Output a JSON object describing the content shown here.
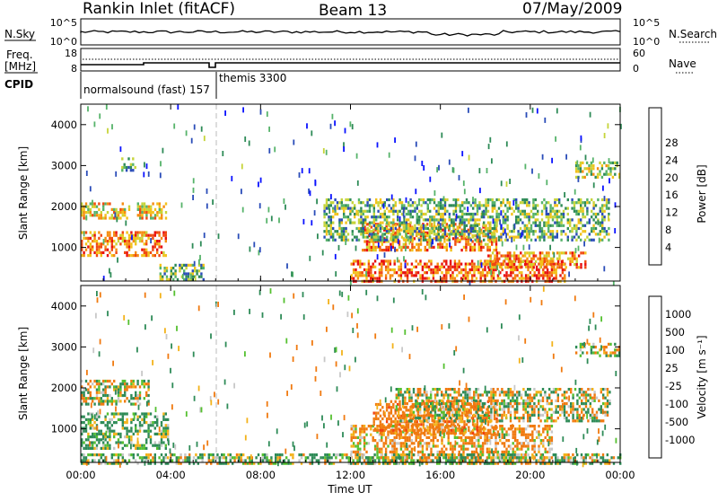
{
  "header": {
    "station": "Rankin Inlet (fitACF)",
    "beam": "Beam 13",
    "date": "07/May/2009"
  },
  "strip": {
    "nsky_label": "N.Sky",
    "nsky_ticks": [
      "10^5",
      "10^0"
    ],
    "nsearch_label": "N.Search",
    "nsearch_ticks": [
      "10^5",
      "10^0"
    ],
    "freq_label_1": "Freq.",
    "freq_label_2": "[MHz]",
    "freq_ticks": [
      "18",
      "8"
    ],
    "nave_label": "Nave",
    "nave_ticks": [
      "60",
      "0"
    ],
    "cpid_label": "CPID",
    "cpid_entries": [
      "normalsound (fast) 157",
      "themis 3300"
    ]
  },
  "axes": {
    "xlabel": "Time UT",
    "xticks": [
      "00:00",
      "04:00",
      "08:00",
      "12:00",
      "16:00",
      "20:00",
      "00:00"
    ],
    "ylabel": "Slant Range [km]",
    "yticks": [
      "1000",
      "2000",
      "3000",
      "4000"
    ]
  },
  "power_scale": {
    "label": "Power [dB]",
    "ticks": [
      "4",
      "8",
      "12",
      "16",
      "20",
      "24",
      "28"
    ],
    "colors": [
      "#0a12ff",
      "#2a4cb8",
      "#2e8b57",
      "#56b36a",
      "#c6d43a",
      "#f2c21a",
      "#f58c10",
      "#f04a10",
      "#e81010"
    ]
  },
  "velocity_scale": {
    "label": "Velocity [m s⁻¹]",
    "ticks": [
      "1000",
      "500",
      "100",
      "25",
      "-25",
      "-100",
      "-500",
      "-1000"
    ],
    "colors": [
      "#1f3fd8",
      "#2e6fb0",
      "#2e8b57",
      "#55c030",
      "#c8c8c8",
      "#f3b21a",
      "#f07a10",
      "#f04010",
      "#e81010"
    ]
  },
  "chart_data": [
    {
      "type": "heatmap",
      "title": "Power",
      "x": {
        "range": [
          "00:00",
          "24:00"
        ],
        "unit": "Time UT"
      },
      "y": {
        "range": [
          180,
          4500
        ],
        "unit": "km"
      },
      "value_label": "Power [dB]",
      "value_range": [
        0,
        30
      ],
      "regions": [
        {
          "t": [
            0.0,
            3.8
          ],
          "r": [
            800,
            1400
          ],
          "value": 22
        },
        {
          "t": [
            0.0,
            2.2
          ],
          "r": [
            1700,
            2100
          ],
          "value": 18
        },
        {
          "t": [
            2.5,
            3.8
          ],
          "r": [
            1700,
            2100
          ],
          "value": 18
        },
        {
          "t": [
            1.8,
            2.4
          ],
          "r": [
            2850,
            3200
          ],
          "value": 10
        },
        {
          "t": [
            3.5,
            5.5
          ],
          "r": [
            180,
            600
          ],
          "value": 12
        },
        {
          "t": [
            12.0,
            21.5
          ],
          "r": [
            180,
            700
          ],
          "value": 24
        },
        {
          "t": [
            12.5,
            18.5
          ],
          "r": [
            900,
            1600
          ],
          "value": 22
        },
        {
          "t": [
            18.0,
            22.5
          ],
          "r": [
            500,
            900
          ],
          "value": 22
        },
        {
          "t": [
            10.8,
            23.5
          ],
          "r": [
            1200,
            2200
          ],
          "value": 12
        },
        {
          "t": [
            22.0,
            24.0
          ],
          "r": [
            2700,
            3100
          ],
          "value": 14
        }
      ]
    },
    {
      "type": "heatmap",
      "title": "Velocity",
      "x": {
        "range": [
          "00:00",
          "24:00"
        ],
        "unit": "Time UT"
      },
      "y": {
        "range": [
          180,
          4500
        ],
        "unit": "km"
      },
      "value_label": "Velocity [m s⁻¹]",
      "value_range": [
        -1000,
        1000
      ],
      "regions": [
        {
          "t": [
            0.0,
            3.9
          ],
          "r": [
            500,
            1400
          ],
          "value": 150
        },
        {
          "t": [
            0.0,
            3.0
          ],
          "r": [
            1600,
            2200
          ],
          "value": 0
        },
        {
          "t": [
            12.0,
            21.0
          ],
          "r": [
            180,
            1100
          ],
          "value": -150
        },
        {
          "t": [
            13.0,
            18.5
          ],
          "r": [
            900,
            1700
          ],
          "value": -300
        },
        {
          "t": [
            14.0,
            23.5
          ],
          "r": [
            1200,
            2000
          ],
          "value": 0
        },
        {
          "t": [
            22.0,
            24.0
          ],
          "r": [
            2800,
            3100
          ],
          "value": 0
        },
        {
          "t": [
            0.0,
            24.0
          ],
          "r": [
            180,
            400
          ],
          "value": 100
        }
      ]
    }
  ]
}
